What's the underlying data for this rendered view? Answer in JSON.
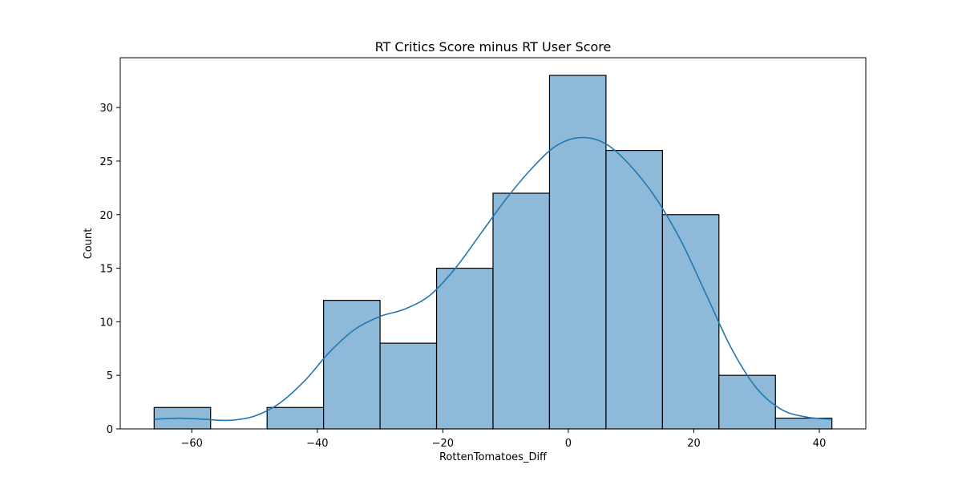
{
  "chart_data": {
    "type": "bar",
    "title": "RT Critics Score minus RT User Score",
    "xlabel": "RottenTomatoes_Diff",
    "ylabel": "Count",
    "xlim": [
      -71.4,
      47.4
    ],
    "ylim": [
      0,
      34.65
    ],
    "x_ticks": [
      -60,
      -40,
      -20,
      0,
      20,
      40
    ],
    "x_tick_labels": [
      "−60",
      "−40",
      "−20",
      "0",
      "20",
      "40"
    ],
    "y_ticks": [
      0,
      5,
      10,
      15,
      20,
      25,
      30
    ],
    "y_tick_labels": [
      "0",
      "5",
      "10",
      "15",
      "20",
      "25",
      "30"
    ],
    "grid": false,
    "bins": [
      {
        "x0": -66,
        "x1": -57,
        "count": 2
      },
      {
        "x0": -57,
        "x1": -48,
        "count": 0
      },
      {
        "x0": -48,
        "x1": -39,
        "count": 2
      },
      {
        "x0": -39,
        "x1": -30,
        "count": 12
      },
      {
        "x0": -30,
        "x1": -21,
        "count": 8
      },
      {
        "x0": -21,
        "x1": -12,
        "count": 15
      },
      {
        "x0": -12,
        "x1": -3,
        "count": 22
      },
      {
        "x0": -3,
        "x1": 6,
        "count": 33
      },
      {
        "x0": 6,
        "x1": 15,
        "count": 26
      },
      {
        "x0": 15,
        "x1": 24,
        "count": 20
      },
      {
        "x0": 24,
        "x1": 33,
        "count": 5
      },
      {
        "x0": 33,
        "x1": 42,
        "count": 1
      }
    ],
    "kde": {
      "x": [
        -66,
        -62,
        -58,
        -54,
        -50,
        -46,
        -42,
        -38,
        -34,
        -30,
        -26,
        -22,
        -18,
        -14,
        -10,
        -6,
        -2,
        2,
        6,
        10,
        14,
        18,
        22,
        26,
        30,
        34,
        38,
        42
      ],
      "y": [
        0.9,
        1.0,
        0.9,
        0.8,
        1.2,
        2.4,
        4.5,
        7.2,
        9.3,
        10.5,
        11.2,
        12.5,
        15.0,
        18.2,
        21.4,
        24.2,
        26.4,
        27.2,
        26.6,
        24.5,
        21.5,
        17.5,
        12.5,
        7.5,
        3.8,
        1.8,
        1.1,
        0.9
      ]
    },
    "colors": {
      "bar_fill": "#8fb9d9",
      "bar_edge": "#000000",
      "kde_line": "#1f77b4"
    }
  }
}
